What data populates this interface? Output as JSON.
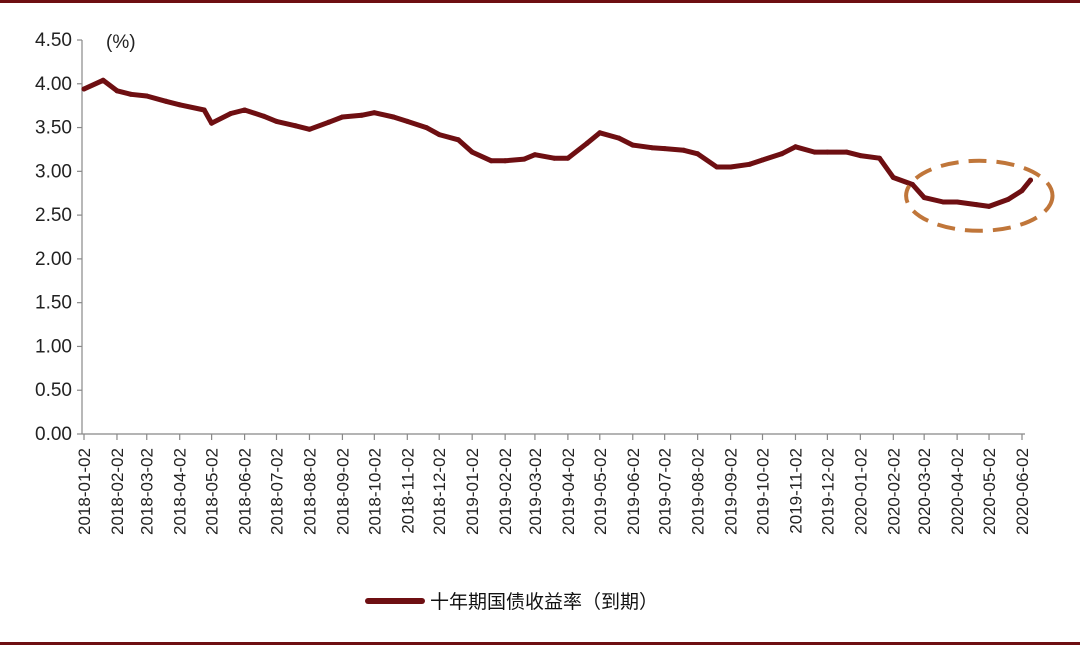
{
  "colors": {
    "frame": "#6e0f12",
    "series": "#6e0f12",
    "highlight": "#c0763a"
  },
  "chart_data": {
    "type": "line",
    "ylabel": "(%)",
    "ylim": [
      0,
      4.5
    ],
    "y_ticks": [
      "0.00",
      "0.50",
      "1.00",
      "1.50",
      "2.00",
      "2.50",
      "3.00",
      "3.50",
      "4.00",
      "4.50"
    ],
    "x_ticks": [
      "2018-01-02",
      "2018-02-02",
      "2018-03-02",
      "2018-04-02",
      "2018-05-02",
      "2018-06-02",
      "2018-07-02",
      "2018-08-02",
      "2018-09-02",
      "2018-10-02",
      "2018-11-02",
      "2018-12-02",
      "2019-01-02",
      "2019-02-02",
      "2019-03-02",
      "2019-04-02",
      "2019-05-02",
      "2019-06-02",
      "2019-07-02",
      "2019-08-02",
      "2019-09-02",
      "2019-10-02",
      "2019-11-02",
      "2019-12-02",
      "2020-01-02",
      "2020-02-02",
      "2020-03-02",
      "2020-04-02",
      "2020-05-02",
      "2020-06-02"
    ],
    "legend_position": "bottom",
    "series": [
      {
        "name": "十年期国债收益率（到期）",
        "x": [
          "2018-01-02",
          "2018-01-20",
          "2018-02-02",
          "2018-02-15",
          "2018-03-02",
          "2018-03-20",
          "2018-04-02",
          "2018-04-25",
          "2018-05-02",
          "2018-05-20",
          "2018-06-02",
          "2018-06-20",
          "2018-07-02",
          "2018-07-20",
          "2018-08-02",
          "2018-08-20",
          "2018-09-02",
          "2018-09-20",
          "2018-10-02",
          "2018-10-20",
          "2018-11-02",
          "2018-11-20",
          "2018-12-02",
          "2018-12-20",
          "2019-01-02",
          "2019-01-20",
          "2019-02-02",
          "2019-02-20",
          "2019-03-02",
          "2019-03-20",
          "2019-04-02",
          "2019-04-20",
          "2019-05-02",
          "2019-05-20",
          "2019-06-02",
          "2019-06-20",
          "2019-07-02",
          "2019-07-20",
          "2019-08-02",
          "2019-08-20",
          "2019-09-02",
          "2019-09-20",
          "2019-10-02",
          "2019-10-20",
          "2019-11-02",
          "2019-11-20",
          "2019-12-02",
          "2019-12-20",
          "2020-01-02",
          "2020-01-20",
          "2020-02-02",
          "2020-02-20",
          "2020-03-02",
          "2020-03-20",
          "2020-04-02",
          "2020-04-20",
          "2020-05-02",
          "2020-05-20",
          "2020-06-02",
          "2020-06-10"
        ],
        "values": [
          3.94,
          4.04,
          3.92,
          3.88,
          3.86,
          3.8,
          3.76,
          3.7,
          3.55,
          3.66,
          3.7,
          3.63,
          3.57,
          3.52,
          3.48,
          3.56,
          3.62,
          3.64,
          3.67,
          3.62,
          3.57,
          3.5,
          3.42,
          3.36,
          3.22,
          3.12,
          3.12,
          3.14,
          3.19,
          3.15,
          3.15,
          3.32,
          3.44,
          3.38,
          3.3,
          3.27,
          3.26,
          3.24,
          3.2,
          3.05,
          3.05,
          3.08,
          3.13,
          3.2,
          3.28,
          3.22,
          3.22,
          3.22,
          3.18,
          3.15,
          2.93,
          2.85,
          2.7,
          2.65,
          2.65,
          2.62,
          2.6,
          2.68,
          2.78,
          2.9
        ]
      }
    ],
    "annotation": "highlight ellipse around 2020-03 to 2020-06 segment"
  },
  "legend": {
    "label": "十年期国债收益率（到期）"
  }
}
